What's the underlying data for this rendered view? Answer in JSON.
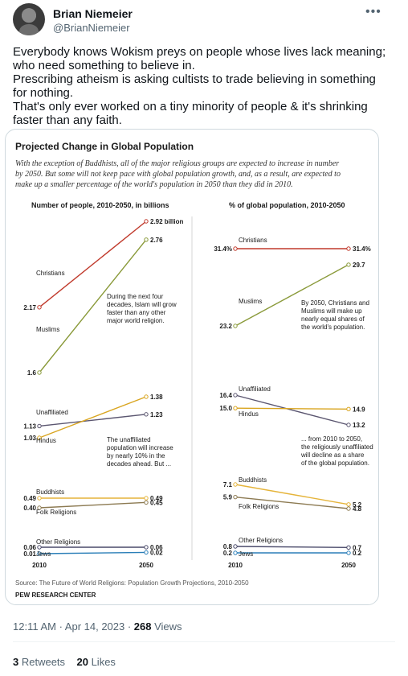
{
  "tweet": {
    "author_name": "Brian Niemeier",
    "author_handle": "@BrianNiemeier",
    "more_icon": "•••",
    "lines": [
      "Everybody knows Wokism preys on people whose lives lack meaning; who need something to believe in.",
      "Prescribing atheism is asking cultists to trade believing in something for nothing.",
      "That's only ever worked on a tiny minority of people & it's shrinking faster than any faith."
    ],
    "time": "12:11 AM · Apr 14, 2023 · ",
    "views_count": "268",
    "views_label": " Views",
    "retweets_count": "3",
    "retweets_label": " Retweets",
    "likes_count": "20",
    "likes_label": " Likes"
  },
  "chart_data": {
    "type": "line",
    "title": "Projected Change in Global Population",
    "subtitle_lines": [
      "With the exception of Buddhists, all of the major religious groups are expected to increase in number",
      "by 2050. But some will not keep pace with global population growth, and, as a result, are expected to",
      "make up a smaller percentage of the world's population in 2050 than they did in 2010."
    ],
    "x": [
      "2010",
      "2050"
    ],
    "colors": {
      "Christians": "#c0392b",
      "Muslims": "#8a9a3a",
      "Unaffiliated": "#5b5670",
      "Hindus": "#d9a520",
      "Buddhists": "#e5b43a",
      "Folk Religions": "#8c7a52",
      "Other Religions": "#4a4a6a",
      "Jews": "#2b7fb8"
    },
    "panels": [
      {
        "header": "Number of people, 2010-2050, in billions",
        "series": [
          {
            "name": "Christians",
            "values": [
              2.17,
              2.92
            ],
            "labels": [
              "2.17",
              "2.92 billion"
            ]
          },
          {
            "name": "Muslims",
            "values": [
              1.6,
              2.76
            ],
            "labels": [
              "1.6",
              "2.76"
            ]
          },
          {
            "name": "Unaffiliated",
            "values": [
              1.13,
              1.23
            ],
            "labels": [
              "1.13",
              "1.23"
            ]
          },
          {
            "name": "Hindus",
            "values": [
              1.03,
              1.38
            ],
            "labels": [
              "1.03",
              "1.38"
            ]
          },
          {
            "name": "Buddhists",
            "values": [
              0.49,
              0.49
            ],
            "labels": [
              "0.49",
              "0.49"
            ]
          },
          {
            "name": "Folk Religions",
            "values": [
              0.4,
              0.45
            ],
            "labels": [
              "0.40",
              "0.45"
            ]
          },
          {
            "name": "Other Religions",
            "values": [
              0.06,
              0.06
            ],
            "labels": [
              "0.06",
              "0.06"
            ]
          },
          {
            "name": "Jews",
            "values": [
              0.01,
              0.02
            ],
            "labels": [
              "0.01",
              "0.02"
            ]
          }
        ],
        "annotations": [
          [
            "During the next four",
            "decades, Islam will grow",
            "faster than any other",
            "major world religion."
          ],
          [
            "The unaffiliated",
            "population will increase",
            "by nearly 10% in the",
            "decades ahead. But ..."
          ]
        ]
      },
      {
        "header": "% of global population, 2010-2050",
        "series": [
          {
            "name": "Christians",
            "values": [
              31.4,
              31.4
            ],
            "labels": [
              "31.4%",
              "31.4%"
            ]
          },
          {
            "name": "Muslims",
            "values": [
              23.2,
              29.7
            ],
            "labels": [
              "23.2",
              "29.7"
            ]
          },
          {
            "name": "Unaffiliated",
            "values": [
              16.4,
              13.2
            ],
            "labels": [
              "16.4",
              "13.2"
            ]
          },
          {
            "name": "Hindus",
            "values": [
              15.0,
              14.9
            ],
            "labels": [
              "15.0",
              "14.9"
            ]
          },
          {
            "name": "Buddhists",
            "values": [
              7.1,
              5.2
            ],
            "labels": [
              "7.1",
              "5.2"
            ]
          },
          {
            "name": "Folk Religions",
            "values": [
              5.9,
              4.8
            ],
            "labels": [
              "5.9",
              "4.8"
            ]
          },
          {
            "name": "Other Religions",
            "values": [
              0.8,
              0.7
            ],
            "labels": [
              "0.8",
              "0.7"
            ]
          },
          {
            "name": "Jews",
            "values": [
              0.2,
              0.2
            ],
            "labels": [
              "0.2",
              "0.2"
            ]
          }
        ],
        "annotations": [
          [
            "By 2050, Christians and",
            "Muslims will make up",
            "nearly equal shares of",
            "the world's population."
          ],
          [
            "... from 2010 to 2050,",
            "the religiously unaffiliated",
            "will decline as a share",
            "of the global population."
          ]
        ]
      }
    ],
    "source": "Source: The Future of World Religions: Population Growth Projections, 2010-2050",
    "credit": "PEW RESEARCH CENTER"
  }
}
